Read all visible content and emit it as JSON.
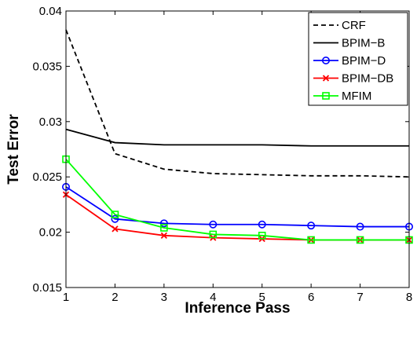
{
  "chart_data": {
    "type": "line",
    "title": "",
    "xlabel": "Inference Pass",
    "ylabel": "Test Error",
    "xlim": [
      1,
      8
    ],
    "ylim": [
      0.015,
      0.04
    ],
    "x_ticks": [
      1,
      2,
      3,
      4,
      5,
      6,
      7,
      8
    ],
    "y_ticks": [
      0.015,
      0.02,
      0.025,
      0.03,
      0.035,
      0.04
    ],
    "y_tick_labels": [
      "0.015",
      "0.02",
      "0.025",
      "0.03",
      "0.035",
      "0.04"
    ],
    "grid": false,
    "legend_position": "top-right",
    "x": [
      1,
      2,
      3,
      4,
      5,
      6,
      7,
      8
    ],
    "series": [
      {
        "name": "CRF",
        "values": [
          0.0383,
          0.0271,
          0.0257,
          0.0253,
          0.0252,
          0.0251,
          0.0251,
          0.025
        ],
        "color": "#000000",
        "dash": "dashed",
        "marker": "none"
      },
      {
        "name": "BPIM−B",
        "values": [
          0.0293,
          0.0281,
          0.0279,
          0.0279,
          0.0279,
          0.0278,
          0.0278,
          0.0278
        ],
        "color": "#000000",
        "dash": "solid",
        "marker": "none"
      },
      {
        "name": "BPIM−D",
        "values": [
          0.0241,
          0.0212,
          0.0208,
          0.0207,
          0.0207,
          0.0206,
          0.0205,
          0.0205
        ],
        "color": "#0000ff",
        "dash": "solid",
        "marker": "circle"
      },
      {
        "name": "BPIM−DB",
        "values": [
          0.0234,
          0.0203,
          0.0197,
          0.0195,
          0.0194,
          0.0193,
          0.0193,
          0.0193
        ],
        "color": "#ff0000",
        "dash": "solid",
        "marker": "x"
      },
      {
        "name": "MFIM",
        "values": [
          0.0266,
          0.0216,
          0.0204,
          0.0198,
          0.0197,
          0.0193,
          0.0193,
          0.0193
        ],
        "color": "#00ff00",
        "dash": "solid",
        "marker": "square"
      }
    ]
  }
}
